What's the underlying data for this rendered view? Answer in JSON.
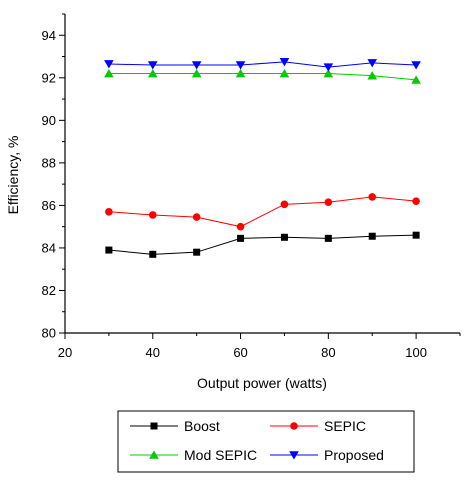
{
  "chart_data": {
    "type": "line",
    "title": "",
    "xlabel": "Output power (watts)",
    "ylabel": "Efficiency, %",
    "xlim": [
      20,
      110
    ],
    "ylim": [
      80,
      95
    ],
    "xticks": [
      20,
      40,
      60,
      80,
      100
    ],
    "yticks": [
      80,
      82,
      84,
      86,
      88,
      90,
      92,
      94
    ],
    "grid": false,
    "legend_position": "bottom",
    "x": [
      30,
      40,
      50,
      60,
      70,
      80,
      90,
      100
    ],
    "series": [
      {
        "name": "Boost",
        "color": "#000000",
        "marker": "square",
        "values": [
          83.9,
          83.7,
          83.8,
          84.45,
          84.5,
          84.45,
          84.55,
          84.6
        ]
      },
      {
        "name": "SEPIC",
        "color": "#ff0000",
        "marker": "circle",
        "values": [
          85.7,
          85.55,
          85.45,
          85.0,
          86.05,
          86.15,
          86.4,
          86.2
        ]
      },
      {
        "name": "Mod SEPIC",
        "color": "#00cc00",
        "marker": "triangle-up",
        "values": [
          92.2,
          92.2,
          92.2,
          92.2,
          92.2,
          92.2,
          92.1,
          91.9
        ]
      },
      {
        "name": "Proposed",
        "color": "#0000ff",
        "marker": "triangle-down",
        "values": [
          92.65,
          92.6,
          92.6,
          92.6,
          92.75,
          92.5,
          92.7,
          92.6
        ]
      }
    ]
  }
}
